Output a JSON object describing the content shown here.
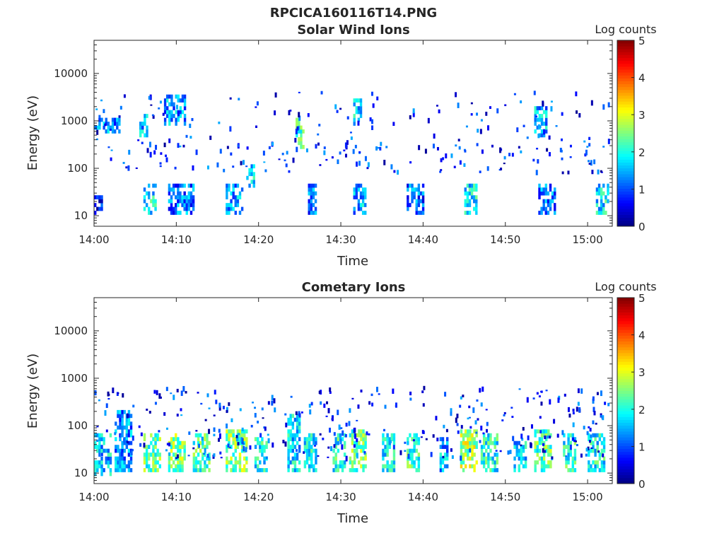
{
  "figure_title": "RPCICA160116T14.PNG",
  "chart_data": [
    {
      "type": "heatmap",
      "title": "Solar Wind Ions",
      "xlabel": "Time",
      "ylabel": "Energy (eV)",
      "x_tick_labels": [
        "14:00",
        "14:10",
        "14:20",
        "14:30",
        "14:40",
        "14:50",
        "15:00"
      ],
      "x_range_minutes": [
        0,
        63
      ],
      "y_scale": "log",
      "y_range": [
        6,
        50000
      ],
      "y_tick_labels": [
        "10",
        "100",
        "1000",
        "10000"
      ],
      "colorbar": {
        "label": "Log counts",
        "range": [
          0,
          5
        ],
        "tick_labels": [
          "0",
          "1",
          "2",
          "3",
          "4",
          "5"
        ],
        "colormap": "jet"
      },
      "bands": [
        {
          "t0": 0,
          "t1": 3,
          "e_min": 600,
          "e_max": 1000,
          "level": 1.3
        },
        {
          "t0": 0,
          "t1": 1,
          "e_min": 11,
          "e_max": 25,
          "level": 0.6
        },
        {
          "t0": 5.5,
          "t1": 6.5,
          "e_min": 500,
          "e_max": 1500,
          "level": 1.6
        },
        {
          "t0": 8.5,
          "t1": 11,
          "e_min": 800,
          "e_max": 3000,
          "level": 1.4
        },
        {
          "t0": 6,
          "t1": 7.5,
          "e_min": 11,
          "e_max": 40,
          "level": 1.8
        },
        {
          "t0": 9,
          "t1": 12,
          "e_min": 11,
          "e_max": 40,
          "level": 1.2
        },
        {
          "t0": 16,
          "t1": 18,
          "e_min": 11,
          "e_max": 40,
          "level": 1.3
        },
        {
          "t0": 18.5,
          "t1": 19.5,
          "e_min": 40,
          "e_max": 120,
          "level": 1.7
        },
        {
          "t0": 24.5,
          "t1": 25.5,
          "e_min": 300,
          "e_max": 1000,
          "level": 2.1
        },
        {
          "t0": 26,
          "t1": 27,
          "e_min": 11,
          "e_max": 40,
          "level": 1.2
        },
        {
          "t0": 31.5,
          "t1": 33,
          "e_min": 11,
          "e_max": 40,
          "level": 1.5
        },
        {
          "t0": 31.5,
          "t1": 32.5,
          "e_min": 900,
          "e_max": 2500,
          "level": 1.7
        },
        {
          "t0": 38,
          "t1": 40,
          "e_min": 11,
          "e_max": 40,
          "level": 1.1
        },
        {
          "t0": 45,
          "t1": 46.5,
          "e_min": 11,
          "e_max": 40,
          "level": 1.8
        },
        {
          "t0": 53.5,
          "t1": 55,
          "e_min": 500,
          "e_max": 2000,
          "level": 1.5
        },
        {
          "t0": 54,
          "t1": 56,
          "e_min": 11,
          "e_max": 40,
          "level": 1.2
        },
        {
          "t0": 61,
          "t1": 62.5,
          "e_min": 12,
          "e_max": 40,
          "level": 1.8
        }
      ]
    },
    {
      "type": "heatmap",
      "title": "Cometary Ions",
      "xlabel": "Time",
      "ylabel": "Energy (eV)",
      "x_tick_labels": [
        "14:00",
        "14:10",
        "14:20",
        "14:30",
        "14:40",
        "14:50",
        "15:00"
      ],
      "x_range_minutes": [
        0,
        63
      ],
      "y_scale": "log",
      "y_range": [
        6,
        50000
      ],
      "y_tick_labels": [
        "10",
        "100",
        "1000",
        "10000"
      ],
      "colorbar": {
        "label": "Log counts",
        "range": [
          0,
          5
        ],
        "tick_labels": [
          "0",
          "1",
          "2",
          "3",
          "4",
          "5"
        ],
        "colormap": "jet"
      },
      "bands": [
        {
          "t0": 0,
          "t1": 2,
          "e_min": 10,
          "e_max": 60,
          "level": 1.6
        },
        {
          "t0": 2.5,
          "t1": 4.5,
          "e_min": 12,
          "e_max": 200,
          "level": 1.3
        },
        {
          "t0": 6,
          "t1": 8,
          "e_min": 12,
          "e_max": 60,
          "level": 2.3
        },
        {
          "t0": 9,
          "t1": 11,
          "e_min": 12,
          "e_max": 60,
          "level": 2.5
        },
        {
          "t0": 12,
          "t1": 14,
          "e_min": 12,
          "e_max": 60,
          "level": 2.2
        },
        {
          "t0": 16,
          "t1": 18.5,
          "e_min": 12,
          "e_max": 80,
          "level": 2.4
        },
        {
          "t0": 19.5,
          "t1": 21,
          "e_min": 12,
          "e_max": 50,
          "level": 1.9
        },
        {
          "t0": 23.5,
          "t1": 25,
          "e_min": 12,
          "e_max": 150,
          "level": 1.7
        },
        {
          "t0": 25.5,
          "t1": 27,
          "e_min": 12,
          "e_max": 60,
          "level": 1.8
        },
        {
          "t0": 29,
          "t1": 30.5,
          "e_min": 12,
          "e_max": 60,
          "level": 2.0
        },
        {
          "t0": 31,
          "t1": 33,
          "e_min": 12,
          "e_max": 80,
          "level": 2.4
        },
        {
          "t0": 35,
          "t1": 36.5,
          "e_min": 12,
          "e_max": 60,
          "level": 1.8
        },
        {
          "t0": 38,
          "t1": 39.5,
          "e_min": 12,
          "e_max": 60,
          "level": 2.2
        },
        {
          "t0": 42,
          "t1": 43,
          "e_min": 12,
          "e_max": 50,
          "level": 1.5
        },
        {
          "t0": 44.5,
          "t1": 46.5,
          "e_min": 12,
          "e_max": 80,
          "level": 2.7
        },
        {
          "t0": 47,
          "t1": 49,
          "e_min": 12,
          "e_max": 60,
          "level": 2.0
        },
        {
          "t0": 51,
          "t1": 52.5,
          "e_min": 12,
          "e_max": 40,
          "level": 1.6
        },
        {
          "t0": 53.5,
          "t1": 55.5,
          "e_min": 12,
          "e_max": 80,
          "level": 2.3
        },
        {
          "t0": 57,
          "t1": 58.5,
          "e_min": 12,
          "e_max": 60,
          "level": 2.0
        },
        {
          "t0": 60,
          "t1": 62,
          "e_min": 12,
          "e_max": 60,
          "level": 1.9
        }
      ]
    }
  ]
}
